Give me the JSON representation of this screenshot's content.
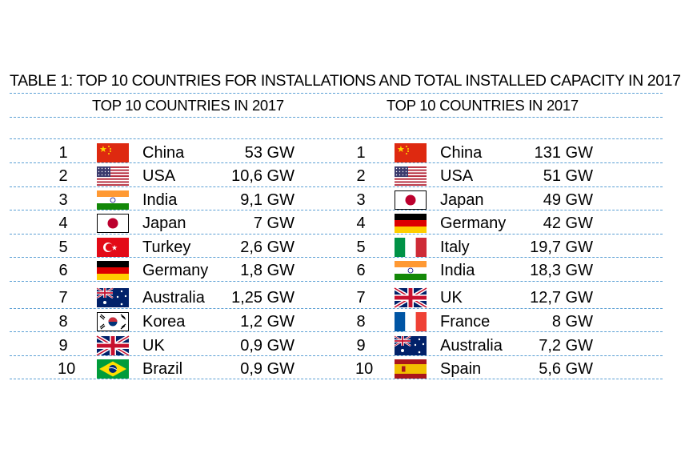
{
  "title": "TABLE 1: TOP 10 COUNTRIES FOR INSTALLATIONS AND TOTAL INSTALLED CAPACITY IN 2017",
  "tables": [
    {
      "header": "TOP 10 COUNTRIES IN 2017",
      "rows": [
        {
          "rank": "1",
          "country": "China",
          "value": "53 GW",
          "flag": "china-flag-icon"
        },
        {
          "rank": "2",
          "country": "USA",
          "value": "10,6 GW",
          "flag": "usa-flag-icon"
        },
        {
          "rank": "3",
          "country": "India",
          "value": "9,1 GW",
          "flag": "india-flag-icon"
        },
        {
          "rank": "4",
          "country": "Japan",
          "value": "7 GW",
          "flag": "japan-flag-icon"
        },
        {
          "rank": "5",
          "country": "Turkey",
          "value": "2,6 GW",
          "flag": "turkey-flag-icon"
        },
        {
          "rank": "6",
          "country": "Germany",
          "value": "1,8 GW",
          "flag": "germany-flag-icon"
        },
        {
          "rank": "7",
          "country": "Australia",
          "value": "1,25 GW",
          "flag": "australia-flag-icon"
        },
        {
          "rank": "8",
          "country": "Korea",
          "value": "1,2 GW",
          "flag": "korea-flag-icon"
        },
        {
          "rank": "9",
          "country": "UK",
          "value": "0,9 GW",
          "flag": "uk-flag-icon"
        },
        {
          "rank": "10",
          "country": "Brazil",
          "value": "0,9 GW",
          "flag": "brazil-flag-icon"
        }
      ]
    },
    {
      "header": "TOP 10 COUNTRIES IN 2017",
      "rows": [
        {
          "rank": "1",
          "country": "China",
          "value": "131 GW",
          "flag": "china-flag-icon"
        },
        {
          "rank": "2",
          "country": "USA",
          "value": "51 GW",
          "flag": "usa-flag-icon"
        },
        {
          "rank": "3",
          "country": "Japan",
          "value": "49 GW",
          "flag": "japan-flag-icon"
        },
        {
          "rank": "4",
          "country": "Germany",
          "value": "42 GW",
          "flag": "germany-flag-icon"
        },
        {
          "rank": "5",
          "country": "Italy",
          "value": "19,7 GW",
          "flag": "italy-flag-icon"
        },
        {
          "rank": "6",
          "country": "India",
          "value": "18,3 GW",
          "flag": "india-flag-icon"
        },
        {
          "rank": "7",
          "country": "UK",
          "value": "12,7 GW",
          "flag": "uk-flag-icon"
        },
        {
          "rank": "8",
          "country": "France",
          "value": "8 GW",
          "flag": "france-flag-icon"
        },
        {
          "rank": "9",
          "country": "Australia",
          "value": "7,2 GW",
          "flag": "australia-flag-icon"
        },
        {
          "rank": "10",
          "country": "Spain",
          "value": "5,6 GW",
          "flag": "spain-flag-icon"
        }
      ]
    }
  ],
  "colors": {
    "divider": "#5a9fd4"
  }
}
